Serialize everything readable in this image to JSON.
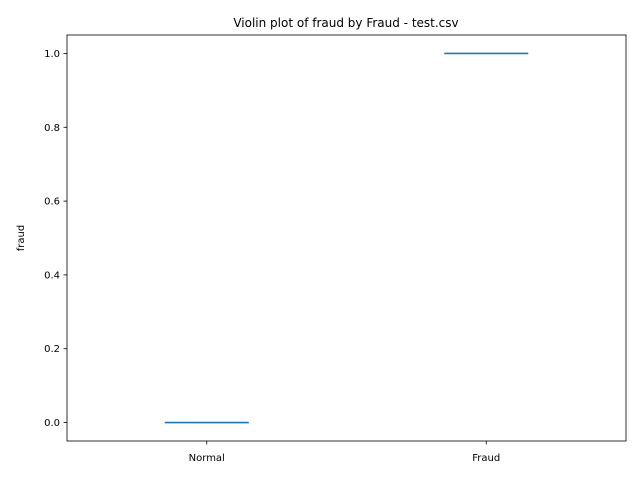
{
  "chart_data": {
    "type": "violin",
    "title": "Violin plot of fraud by Fraud - test.csv",
    "xlabel": "",
    "ylabel": "fraud",
    "categories": [
      "Normal",
      "Fraud"
    ],
    "values": [
      0.0,
      1.0
    ],
    "ylim": [
      -0.05,
      1.05
    ],
    "yticks": [
      "0.0",
      "0.2",
      "0.4",
      "0.6",
      "0.8",
      "1.0"
    ],
    "ytick_values": [
      0.0,
      0.2,
      0.4,
      0.6,
      0.8,
      1.0
    ],
    "grid": false,
    "color": "#1f77b4"
  }
}
